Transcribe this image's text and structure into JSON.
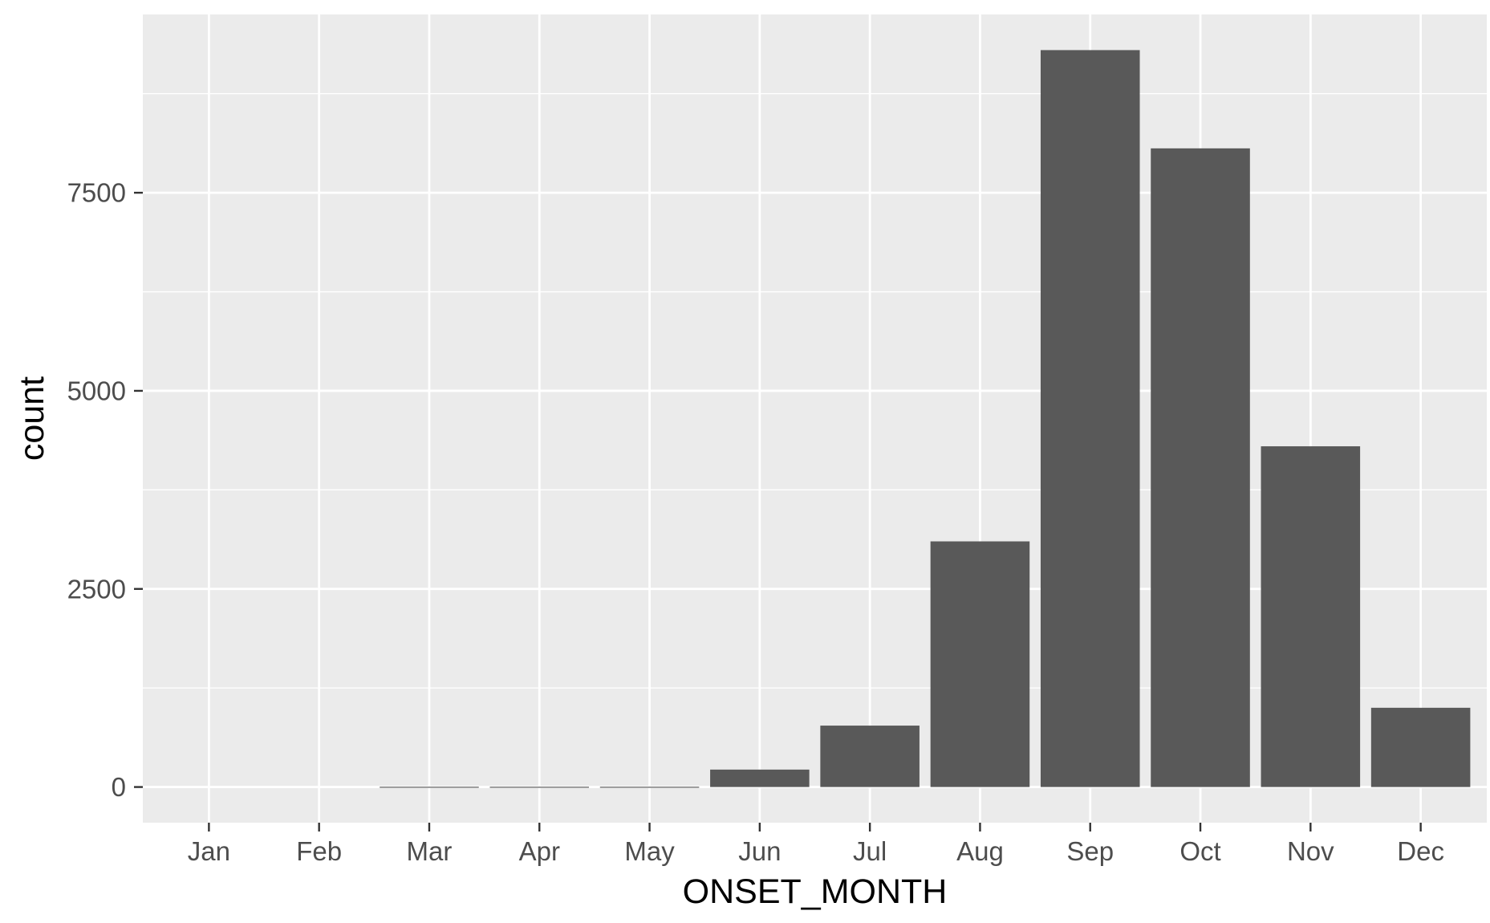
{
  "chart_data": {
    "type": "bar",
    "categories": [
      "Jan",
      "Feb",
      "Mar",
      "Apr",
      "May",
      "Jun",
      "Jul",
      "Aug",
      "Sep",
      "Oct",
      "Nov",
      "Dec"
    ],
    "values": [
      0,
      0,
      3,
      3,
      3,
      220,
      775,
      3100,
      9300,
      8060,
      4300,
      1000
    ],
    "title": "",
    "xlabel": "ONSET_MONTH",
    "ylabel": "count",
    "yticks": [
      0,
      2500,
      5000,
      7500
    ],
    "ylim": [
      -450,
      9750
    ],
    "grid": true,
    "legend": "none",
    "colors": {
      "panel_background": "#ebebeb",
      "grid": "#ffffff",
      "bar_fill": "#595959",
      "tick": "#333333",
      "tick_label": "#4d4d4d",
      "axis_title": "#000000"
    }
  }
}
